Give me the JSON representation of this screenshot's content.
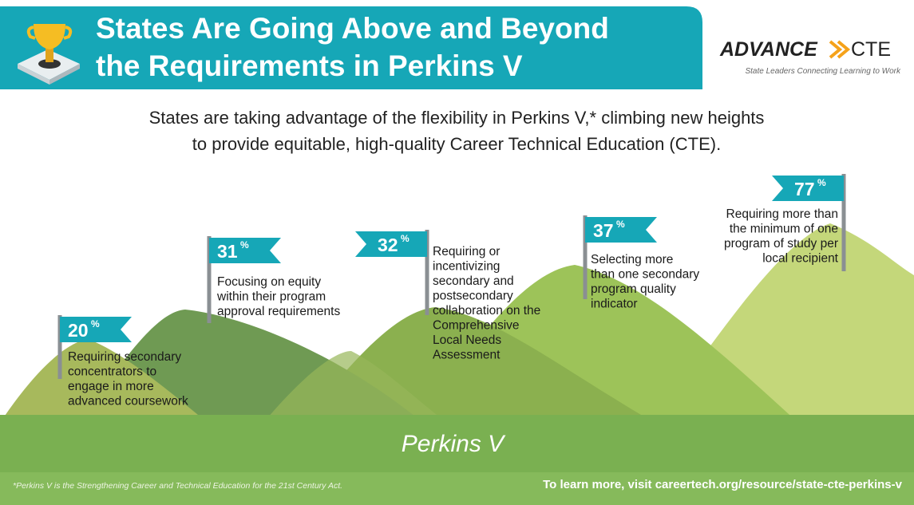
{
  "header": {
    "title_lines": [
      "States Are Going Above and Beyond",
      "the Requirements in Perkins V"
    ],
    "logo": {
      "name_left": "ADVANCE",
      "name_right": "CTE",
      "tagline": "State Leaders Connecting Learning to Work"
    }
  },
  "intro_lines": [
    "States are taking advantage of the flexibility in Perkins V,* climbing new heights",
    "to provide equitable, high-quality Career Technical Education (CTE)."
  ],
  "unit": "%",
  "flags": [
    {
      "value": "20",
      "lines": [
        "Requiring secondary",
        "concentrators to",
        "engage in more",
        "advanced coursework"
      ]
    },
    {
      "value": "31",
      "lines": [
        "Focusing on equity",
        "within their program",
        "approval requirements"
      ]
    },
    {
      "value": "32",
      "lines": [
        "Requiring or",
        "incentivizing",
        "secondary and",
        "postsecondary",
        "collaboration on the",
        "Comprehensive",
        "Local Needs",
        "Assessment"
      ]
    },
    {
      "value": "37",
      "lines": [
        "Selecting more",
        "than one secondary",
        "program quality",
        "indicator"
      ]
    },
    {
      "value": "77",
      "lines": [
        "Requiring more than",
        "the minimum of one",
        "program of study per",
        "local recipient"
      ]
    }
  ],
  "ground_label": "Perkins V",
  "footnote": "*Perkins V is the Strengthening Career and Technical Education for the 21st Century Act.",
  "learn_more": "To learn more, visit careertech.org/resource/state-cte-perkins-v"
}
